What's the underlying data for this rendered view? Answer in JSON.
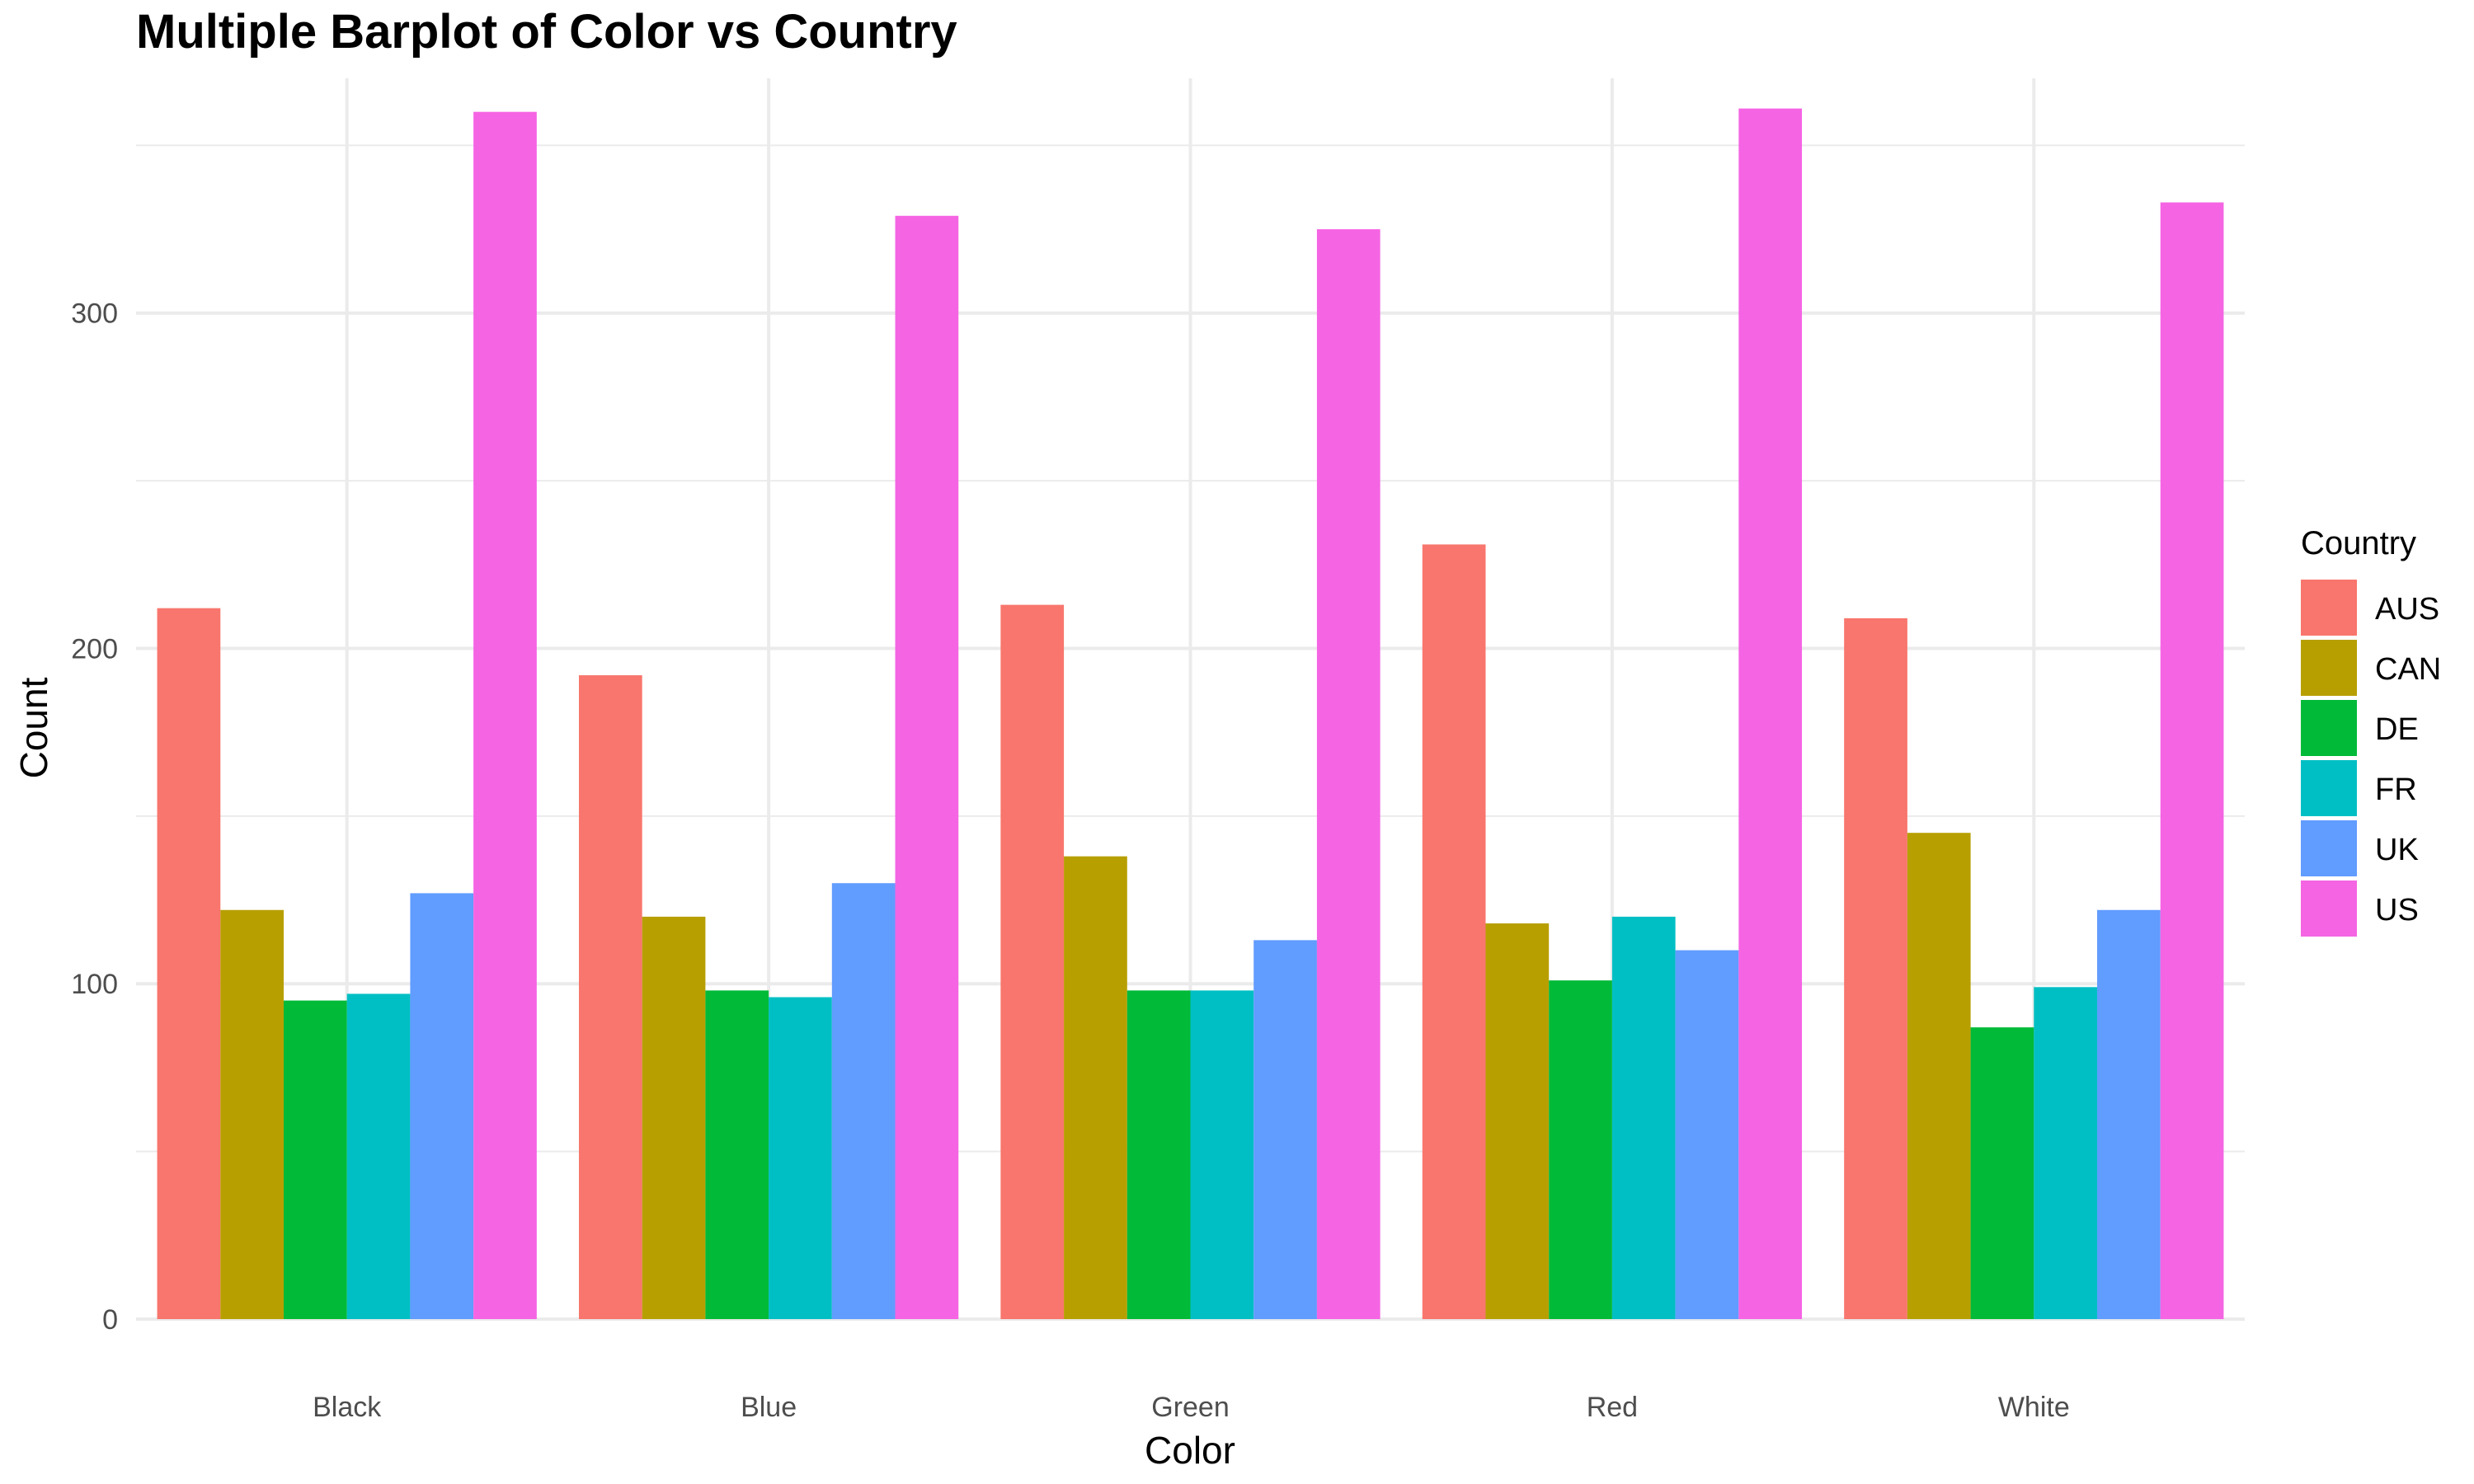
{
  "chart_data": {
    "type": "bar",
    "title": "Multiple Barplot of Color vs Country",
    "xlabel": "Color",
    "ylabel": "Count",
    "categories": [
      "Black",
      "Blue",
      "Green",
      "Red",
      "White"
    ],
    "ylim": [
      0,
      370
    ],
    "yticks": [
      0,
      100,
      200,
      300
    ],
    "yticks_labels": [
      "0",
      "100",
      "200",
      "300"
    ],
    "grid": true,
    "legend": {
      "title": "Country",
      "position": "right"
    },
    "series": [
      {
        "name": "AUS",
        "color": "#F8766D",
        "values": [
          212,
          192,
          213,
          231,
          209
        ]
      },
      {
        "name": "CAN",
        "color": "#B79F00",
        "values": [
          122,
          120,
          138,
          118,
          145
        ]
      },
      {
        "name": "DE",
        "color": "#00BA38",
        "values": [
          95,
          98,
          98,
          101,
          87
        ]
      },
      {
        "name": "FR",
        "color": "#00BFC4",
        "values": [
          97,
          96,
          98,
          120,
          99
        ]
      },
      {
        "name": "UK",
        "color": "#619CFF",
        "values": [
          127,
          130,
          113,
          110,
          122
        ]
      },
      {
        "name": "US",
        "color": "#F564E3",
        "values": [
          360,
          329,
          325,
          361,
          333
        ]
      }
    ]
  }
}
